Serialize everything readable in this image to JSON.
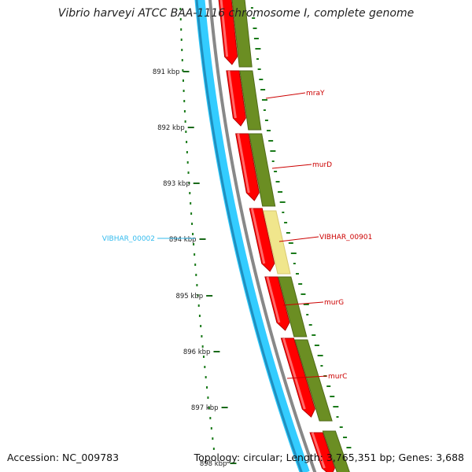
{
  "map": {
    "title": "Vibrio harveyi ATCC BAA-1116 chromosome I, complete genome",
    "accession_text": "Accession: NC_009783",
    "summary_text": "Topology: circular; Length: 3,765,351 bp; Genes: 3,688",
    "tick_labels": [
      "891 kbp",
      "892 kbp",
      "893 kbp",
      "894 kbp",
      "895 kbp",
      "896 kbp",
      "897 kbp",
      "898 kbp"
    ],
    "gene_labels": {
      "reverse_strand": [
        "VIBHAR_00002"
      ],
      "forward_strand": [
        "mraY",
        "murD",
        "VIBHAR_00901",
        "murG",
        "murC"
      ]
    },
    "colors": {
      "reverse_cds": "#33ccff",
      "backbone": "#888888",
      "forward_cds": "#ff0000",
      "feature_track": "#6b8e23",
      "highlight_track": "#f0e68c",
      "gc_ticks": "#1a7a1a",
      "forward_label": "#cc0000",
      "reverse_label": "#33bbee"
    }
  }
}
